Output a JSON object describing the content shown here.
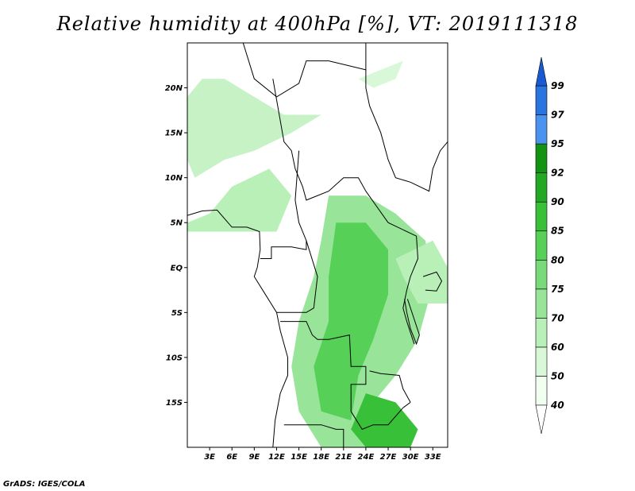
{
  "title": "Relative humidity at 400hPa [%], VT: 2019111318",
  "credit": "GrADS: IGES/COLA",
  "map": {
    "lon_range": [
      0,
      35
    ],
    "lat_range": [
      -20,
      25
    ],
    "lat_ticks": [
      {
        "value": 20,
        "label": "20N"
      },
      {
        "value": 15,
        "label": "15N"
      },
      {
        "value": 10,
        "label": "10N"
      },
      {
        "value": 5,
        "label": "5N"
      },
      {
        "value": 0,
        "label": "EQ"
      },
      {
        "value": -5,
        "label": "5S"
      },
      {
        "value": -10,
        "label": "10S"
      },
      {
        "value": -15,
        "label": "15S"
      }
    ],
    "lon_ticks": [
      {
        "value": 3,
        "label": "3E"
      },
      {
        "value": 6,
        "label": "6E"
      },
      {
        "value": 9,
        "label": "9E"
      },
      {
        "value": 12,
        "label": "12E"
      },
      {
        "value": 15,
        "label": "15E"
      },
      {
        "value": 18,
        "label": "18E"
      },
      {
        "value": 21,
        "label": "21E"
      },
      {
        "value": 24,
        "label": "24E"
      },
      {
        "value": 27,
        "label": "27E"
      },
      {
        "value": 30,
        "label": "30E"
      },
      {
        "value": 33,
        "label": "33E"
      }
    ]
  },
  "colorbar": {
    "levels": [
      {
        "label": "40",
        "color": "#f0fff0"
      },
      {
        "label": "50",
        "color": "#d8f8d8"
      },
      {
        "label": "60",
        "color": "#b8f0b8"
      },
      {
        "label": "70",
        "color": "#98e498"
      },
      {
        "label": "75",
        "color": "#78da78"
      },
      {
        "label": "80",
        "color": "#56d056"
      },
      {
        "label": "85",
        "color": "#38c038"
      },
      {
        "label": "90",
        "color": "#22a822"
      },
      {
        "label": "92",
        "color": "#129412"
      },
      {
        "label": "95",
        "color": "#4a94f0"
      },
      {
        "label": "97",
        "color": "#2a74e0"
      },
      {
        "label": "99",
        "color": "#1a5ad0"
      }
    ],
    "below_color": "#ffffff",
    "above_color": "#1a5ad0"
  },
  "humidity_regions": [
    {
      "name": "sahel-band",
      "color": "#c6f2c6",
      "points": [
        [
          0,
          19
        ],
        [
          2,
          21
        ],
        [
          5,
          21
        ],
        [
          9,
          19
        ],
        [
          13,
          17
        ],
        [
          18,
          17
        ],
        [
          14,
          15
        ],
        [
          9,
          13
        ],
        [
          5,
          12
        ],
        [
          1,
          10
        ],
        [
          0,
          12
        ]
      ]
    },
    {
      "name": "west-guinea",
      "color": "#b8f0b8",
      "points": [
        [
          0,
          5
        ],
        [
          3,
          6
        ],
        [
          6,
          9
        ],
        [
          11,
          11
        ],
        [
          14,
          8
        ],
        [
          12,
          4
        ],
        [
          8,
          4
        ],
        [
          4,
          4
        ],
        [
          0,
          4
        ]
      ]
    },
    {
      "name": "congo-basin",
      "color": "#98e498",
      "points": [
        [
          19,
          8
        ],
        [
          24,
          8
        ],
        [
          28,
          6
        ],
        [
          32,
          3
        ],
        [
          33,
          -2
        ],
        [
          31,
          -8
        ],
        [
          28,
          -12
        ],
        [
          25,
          -15
        ],
        [
          26,
          -20
        ],
        [
          18,
          -20
        ],
        [
          15,
          -16
        ],
        [
          14,
          -11
        ],
        [
          15,
          -6
        ],
        [
          17,
          -1
        ],
        [
          18,
          3
        ]
      ]
    },
    {
      "name": "central-core",
      "color": "#56d056",
      "points": [
        [
          20,
          5
        ],
        [
          24,
          5
        ],
        [
          27,
          2
        ],
        [
          27,
          -3
        ],
        [
          25,
          -8
        ],
        [
          23,
          -12
        ],
        [
          22,
          -17
        ],
        [
          18,
          -16
        ],
        [
          17,
          -11
        ],
        [
          19,
          -6
        ],
        [
          19,
          -1
        ]
      ]
    },
    {
      "name": "south-core",
      "color": "#38c038",
      "points": [
        [
          24,
          -14
        ],
        [
          28,
          -15
        ],
        [
          31,
          -18
        ],
        [
          30,
          -20
        ],
        [
          24,
          -20
        ],
        [
          22,
          -18
        ]
      ]
    },
    {
      "name": "east-lakes",
      "color": "#b8f0b8",
      "points": [
        [
          28,
          1
        ],
        [
          33,
          3
        ],
        [
          35,
          0
        ],
        [
          35,
          -4
        ],
        [
          31,
          -4
        ],
        [
          29,
          -1
        ]
      ]
    },
    {
      "name": "north-strip",
      "color": "#d8f8d8",
      "points": [
        [
          23,
          21
        ],
        [
          26,
          22
        ],
        [
          29,
          23
        ],
        [
          28,
          21
        ],
        [
          25,
          20
        ]
      ]
    }
  ],
  "country_borders": [
    {
      "name": "coastline",
      "points": [
        [
          0,
          5.8
        ],
        [
          2,
          6.3
        ],
        [
          4,
          6.4
        ],
        [
          6,
          4.5
        ],
        [
          8,
          4.5
        ],
        [
          9.7,
          4
        ],
        [
          9.8,
          2
        ],
        [
          9.4,
          0
        ],
        [
          9,
          -1
        ],
        [
          10.5,
          -3
        ],
        [
          12,
          -5
        ],
        [
          12.5,
          -7
        ],
        [
          13.5,
          -10
        ],
        [
          13.5,
          -12
        ],
        [
          12.5,
          -14
        ],
        [
          11.8,
          -17
        ],
        [
          11.5,
          -20
        ]
      ]
    },
    {
      "name": "border-a",
      "points": [
        [
          7.5,
          25
        ],
        [
          9,
          21
        ],
        [
          12,
          19
        ],
        [
          15,
          20.5
        ],
        [
          16,
          23
        ],
        [
          19,
          23
        ],
        [
          24,
          22
        ],
        [
          24,
          25
        ]
      ]
    },
    {
      "name": "border-b",
      "points": [
        [
          11.5,
          21
        ],
        [
          13,
          14
        ],
        [
          14,
          13
        ],
        [
          14.5,
          11
        ],
        [
          15.5,
          9
        ],
        [
          16,
          7.5
        ],
        [
          19,
          8.5
        ],
        [
          21,
          10
        ],
        [
          23,
          10
        ],
        [
          24,
          8.5
        ],
        [
          27,
          5
        ],
        [
          30.8,
          3.5
        ],
        [
          31,
          1
        ],
        [
          30,
          -1
        ],
        [
          29.5,
          -2.5
        ],
        [
          29,
          -4.5
        ],
        [
          29.5,
          -6
        ],
        [
          30.5,
          -8.5
        ]
      ]
    },
    {
      "name": "border-c",
      "points": [
        [
          15,
          13
        ],
        [
          14.5,
          7.5
        ],
        [
          15,
          5
        ],
        [
          16,
          3
        ],
        [
          16,
          2
        ],
        [
          14,
          2.3
        ],
        [
          11.3,
          2.3
        ],
        [
          11.3,
          1
        ],
        [
          9.8,
          1
        ]
      ]
    },
    {
      "name": "border-d",
      "points": [
        [
          16,
          3
        ],
        [
          17.5,
          -1
        ],
        [
          17,
          -4.5
        ],
        [
          16,
          -5
        ],
        [
          12,
          -5
        ]
      ]
    },
    {
      "name": "border-e",
      "points": [
        [
          12.5,
          -6
        ],
        [
          16,
          -6
        ],
        [
          16.8,
          -7.5
        ],
        [
          17.5,
          -8
        ],
        [
          19,
          -8
        ],
        [
          21.8,
          -7.5
        ],
        [
          22,
          -11
        ],
        [
          24,
          -11
        ],
        [
          24,
          -13
        ],
        [
          22,
          -13
        ],
        [
          22,
          -16
        ],
        [
          23.5,
          -18
        ],
        [
          25,
          -17.5
        ],
        [
          27,
          -17.5
        ],
        [
          29,
          -15.6
        ],
        [
          30,
          -15
        ]
      ]
    },
    {
      "name": "border-f",
      "points": [
        [
          24.5,
          -11.5
        ],
        [
          26,
          -11.8
        ],
        [
          28.5,
          -12
        ],
        [
          29,
          -13.5
        ],
        [
          30,
          -15
        ]
      ]
    },
    {
      "name": "border-g",
      "points": [
        [
          13,
          -17.5
        ],
        [
          18,
          -17.5
        ],
        [
          20,
          -18
        ],
        [
          21,
          -18
        ],
        [
          21,
          -20
        ]
      ]
    },
    {
      "name": "border-h",
      "points": [
        [
          24,
          22
        ],
        [
          24,
          20
        ],
        [
          24.5,
          18
        ],
        [
          26,
          15
        ],
        [
          27,
          12
        ],
        [
          28,
          10
        ],
        [
          30,
          9.5
        ],
        [
          32.5,
          8.5
        ],
        [
          33,
          11
        ],
        [
          34,
          13
        ],
        [
          35,
          14
        ]
      ]
    },
    {
      "name": "lake-tanganyika",
      "points": [
        [
          29.2,
          -3.5
        ],
        [
          29.5,
          -5
        ],
        [
          30,
          -6.8
        ],
        [
          30.8,
          -8.5
        ],
        [
          31.2,
          -7.5
        ],
        [
          30.4,
          -5.5
        ],
        [
          29.6,
          -3.5
        ]
      ]
    },
    {
      "name": "lake-victoria",
      "points": [
        [
          31.7,
          -1
        ],
        [
          33.5,
          -0.5
        ],
        [
          34.2,
          -1.5
        ],
        [
          33.5,
          -2.6
        ],
        [
          32,
          -2.5
        ]
      ]
    }
  ]
}
